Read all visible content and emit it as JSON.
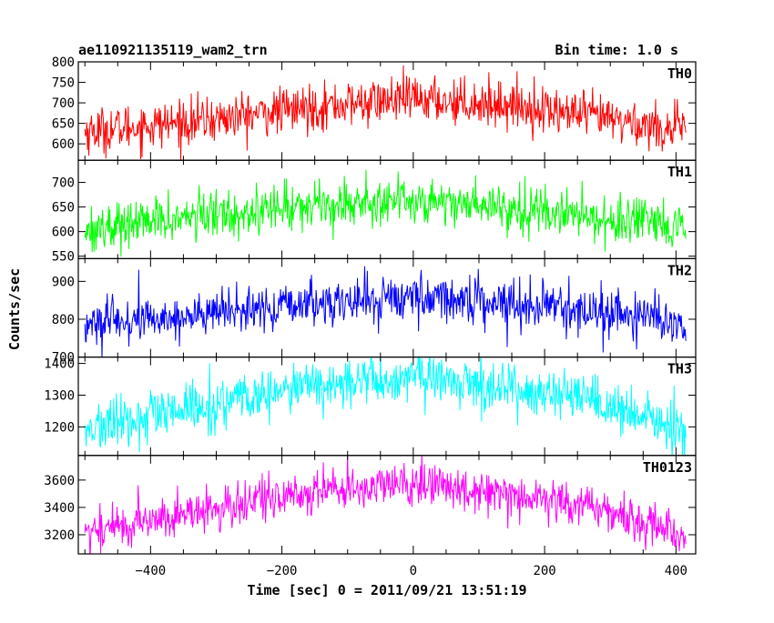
{
  "header": {
    "title": "ae110921135119_wam2_trn",
    "bin_time": "Bin time: 1.0 s"
  },
  "ylabel": "Counts/sec",
  "xlabel": "Time [sec] 0 = 2011/09/21 13:51:19",
  "colors": {
    "TH0": "#ff0000",
    "TH1": "#00ff00",
    "TH2": "#0000ff",
    "TH3": "#00ffff",
    "TH0123": "#ff00ff"
  },
  "chart_data": {
    "type": "line",
    "x_range": [
      -510,
      430
    ],
    "x_ticks": [
      -400,
      -200,
      0,
      200,
      400
    ],
    "x_tick_labels": [
      "−400",
      "−200",
      "0",
      "200",
      "400"
    ],
    "bin_time_s": 1.0,
    "panels": [
      {
        "name": "TH0",
        "ylim": [
          560,
          800
        ],
        "y_ticks": [
          600,
          650,
          700,
          750,
          800
        ],
        "y_tick_labels": [
          "600",
          "650",
          "700",
          "750",
          "800"
        ],
        "trend": {
          "x": [
            -500,
            -300,
            -150,
            0,
            150,
            300,
            415
          ],
          "y": [
            630,
            660,
            690,
            710,
            695,
            660,
            630
          ]
        },
        "noise_sd": 28
      },
      {
        "name": "TH1",
        "ylim": [
          545,
          745
        ],
        "y_ticks": [
          550,
          600,
          650,
          700
        ],
        "y_tick_labels": [
          "550",
          "600",
          "650",
          "700"
        ],
        "trend": {
          "x": [
            -500,
            -300,
            -150,
            0,
            150,
            300,
            415
          ],
          "y": [
            605,
            635,
            655,
            665,
            650,
            625,
            600
          ]
        },
        "noise_sd": 24
      },
      {
        "name": "TH2",
        "ylim": [
          700,
          960
        ],
        "y_ticks": [
          700,
          800,
          900
        ],
        "y_tick_labels": [
          "700",
          "800",
          "900"
        ],
        "trend": {
          "x": [
            -500,
            -300,
            -150,
            0,
            150,
            300,
            415
          ],
          "y": [
            785,
            815,
            840,
            860,
            845,
            815,
            790
          ]
        },
        "noise_sd": 30
      },
      {
        "name": "TH3",
        "ylim": [
          1110,
          1420
        ],
        "y_ticks": [
          1200,
          1300,
          1400
        ],
        "y_tick_labels": [
          "1200",
          "1300",
          "1400"
        ],
        "trend": {
          "x": [
            -500,
            -300,
            -150,
            0,
            150,
            300,
            415
          ],
          "y": [
            1190,
            1270,
            1330,
            1355,
            1325,
            1260,
            1185
          ]
        },
        "noise_sd": 40
      },
      {
        "name": "TH0123",
        "ylim": [
          3060,
          3780
        ],
        "y_ticks": [
          3200,
          3400,
          3600
        ],
        "y_tick_labels": [
          "3200",
          "3400",
          "3600"
        ],
        "trend": {
          "x": [
            -500,
            -300,
            -150,
            0,
            150,
            300,
            415
          ],
          "y": [
            3220,
            3390,
            3520,
            3570,
            3510,
            3370,
            3200
          ]
        },
        "noise_sd": 80
      }
    ]
  }
}
